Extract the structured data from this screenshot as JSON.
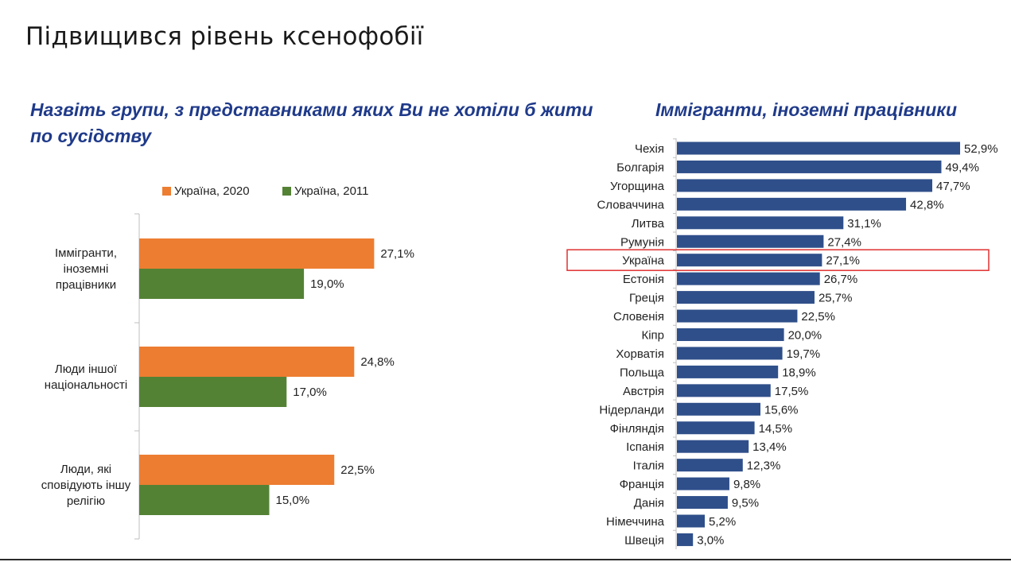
{
  "title": "Підвищився рівень ксенофобії",
  "left_subtitle": "Назвіть групи, з представниками яких Ви не хотіли б жити по сусідству",
  "right_subtitle": "Іммігранти, іноземні працівники",
  "colors": {
    "ukraine_2020": "#ed7d31",
    "ukraine_2011": "#548235",
    "country_bar": "#2f4f8a",
    "highlight_box": "#e03030",
    "title_blue": "#1f3a8a"
  },
  "chart_data": [
    {
      "type": "bar",
      "orientation": "horizontal",
      "title": "Назвіть групи, з представниками яких Ви не хотіли б жити по сусідству",
      "legend_position": "top",
      "categories": [
        "Іммігранти, іноземні працівники",
        "Люди іншої національності",
        "Люди, які сповідують іншу релігію"
      ],
      "category_lines": [
        [
          "Іммігранти,",
          "іноземні",
          "працівники"
        ],
        [
          "Люди іншої",
          "національності"
        ],
        [
          "Люди, які",
          "сповідують іншу",
          "релігію"
        ]
      ],
      "series": [
        {
          "name": "Україна, 2020",
          "values": [
            27.1,
            24.8,
            22.5
          ],
          "labels": [
            "27,1%",
            "24,8%",
            "22,5%"
          ]
        },
        {
          "name": "Україна, 2011",
          "values": [
            19.0,
            17.0,
            15.0
          ],
          "labels": [
            "19,0%",
            "17,0%",
            "15,0%"
          ]
        }
      ],
      "xlim": [
        0,
        50
      ],
      "grid": false
    },
    {
      "type": "bar",
      "orientation": "horizontal",
      "title": "Іммігранти, іноземні працівники",
      "categories": [
        "Чехія",
        "Болгарія",
        "Угорщина",
        "Словаччина",
        "Литва",
        "Румунія",
        "Україна",
        "Естонія",
        "Греція",
        "Словенія",
        "Кіпр",
        "Хорватія",
        "Польща",
        "Австрія",
        "Нідерланди",
        "Фінляндія",
        "Іспанія",
        "Італія",
        "Франція",
        "Данія",
        "Німеччина",
        "Швеція"
      ],
      "values": [
        52.9,
        49.4,
        47.7,
        42.8,
        31.1,
        27.4,
        27.1,
        26.7,
        25.7,
        22.5,
        20.0,
        19.7,
        18.9,
        17.5,
        15.6,
        14.5,
        13.4,
        12.3,
        9.8,
        9.5,
        5.2,
        3.0
      ],
      "labels": [
        "52,9%",
        "49,4%",
        "47,7%",
        "42,8%",
        "31,1%",
        "27,4%",
        "27,1%",
        "26,7%",
        "25,7%",
        "22,5%",
        "20,0%",
        "19,7%",
        "18,9%",
        "17,5%",
        "15,6%",
        "14,5%",
        "13,4%",
        "12,3%",
        "9,8%",
        "9,5%",
        "5,2%",
        "3,0%"
      ],
      "highlighted_category": "Україна",
      "xlim": [
        0,
        55
      ],
      "grid": false
    }
  ]
}
